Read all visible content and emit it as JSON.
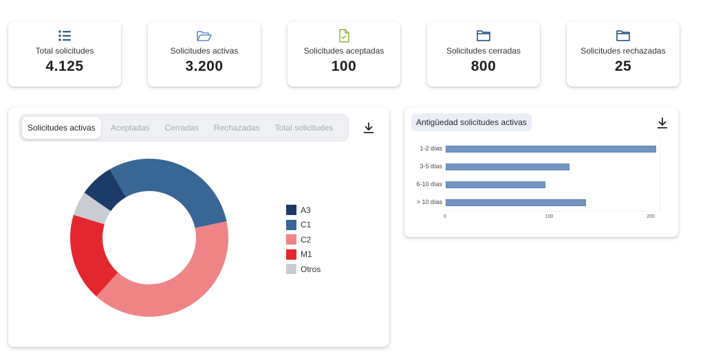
{
  "stats": [
    {
      "label": "Total solicitudes",
      "value": "4.125",
      "icon": "list-icon"
    },
    {
      "label": "Solicitudes activas",
      "value": "3.200",
      "icon": "folder-open-icon"
    },
    {
      "label": "Solicitudes aceptadas",
      "value": "100",
      "icon": "file-check-icon"
    },
    {
      "label": "Solicitudes cerradas",
      "value": "800",
      "icon": "folder-icon"
    },
    {
      "label": "Solicitudes rechazadas",
      "value": "25",
      "icon": "folder-icon"
    }
  ],
  "colors": {
    "icon_blue": "#2f5d8a",
    "icon_light_blue": "#5b8ac6",
    "icon_green": "#8fb13a",
    "A3": "#1c3b69",
    "C1": "#386695",
    "C2": "#ee8485",
    "M1": "#e4272f",
    "Otros": "#c9cdd3",
    "bar": "#7395c2"
  },
  "left_panel": {
    "tabs": [
      "Solicitudes activas",
      "Aceptadas",
      "Cerradas",
      "Rechazadas",
      "Total solicitudes"
    ],
    "active_tab": 0,
    "download_icon": "download-icon"
  },
  "chart_data": [
    {
      "type": "pie",
      "donut": true,
      "categories": [
        "A3",
        "C1",
        "C2",
        "M1",
        "Otros"
      ],
      "values": [
        7,
        30,
        40,
        18,
        5
      ],
      "legend": "right"
    },
    {
      "type": "bar",
      "orientation": "horizontal",
      "title": "Antigüedad solicitudes activas",
      "categories": [
        "1-2 días",
        "3-5 días",
        "6-10 días",
        "> 10 días"
      ],
      "values": [
        207,
        122,
        98,
        138
      ],
      "xlim": [
        0,
        210
      ],
      "xticks": [
        0,
        100,
        200
      ],
      "grid": false
    }
  ]
}
